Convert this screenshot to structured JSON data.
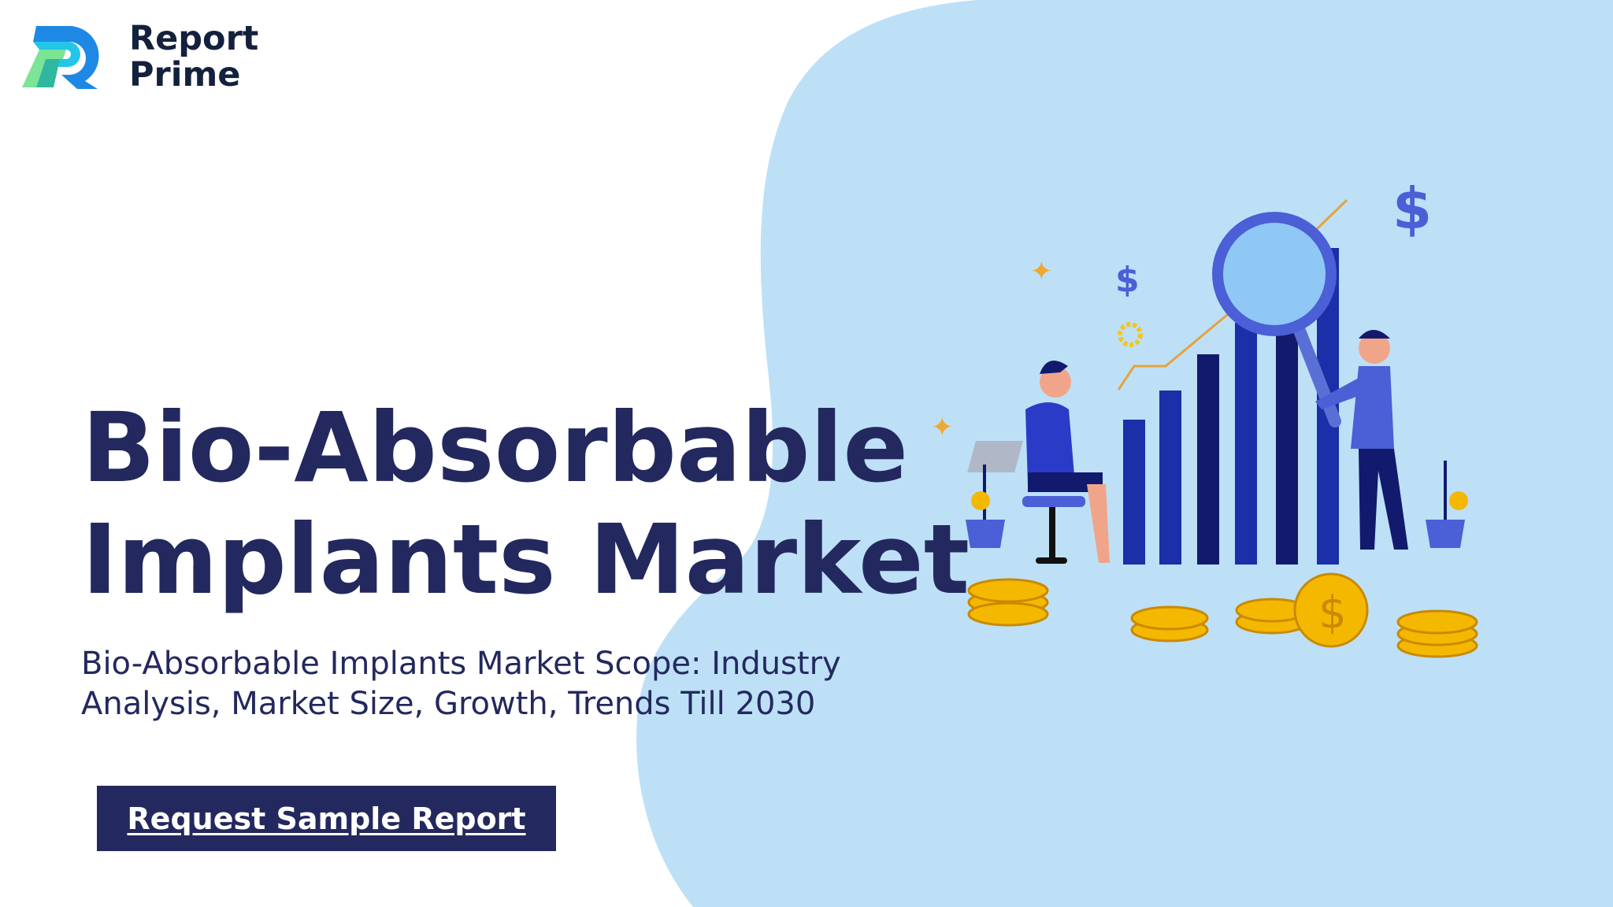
{
  "brand": {
    "name_line1": "Report",
    "name_line2": "Prime"
  },
  "hero": {
    "title_line1": "Bio-Absorbable",
    "title_line2": "Implants Market",
    "subtitle_line1": "Bio-Absorbable Implants Market Scope: Industry",
    "subtitle_line2": "Analysis, Market Size, Growth, Trends Till 2030",
    "cta_label": "Request Sample Report"
  },
  "colors": {
    "primary": "#23295e",
    "blob": "#bde0f7",
    "accent_blue": "#1a2fa8",
    "gold": "#f5b800"
  },
  "illustration": {
    "icons": [
      "dollar-icon",
      "magnifier-icon",
      "gear-icon",
      "sparkle-icon",
      "coin-icon",
      "plant-icon"
    ]
  }
}
